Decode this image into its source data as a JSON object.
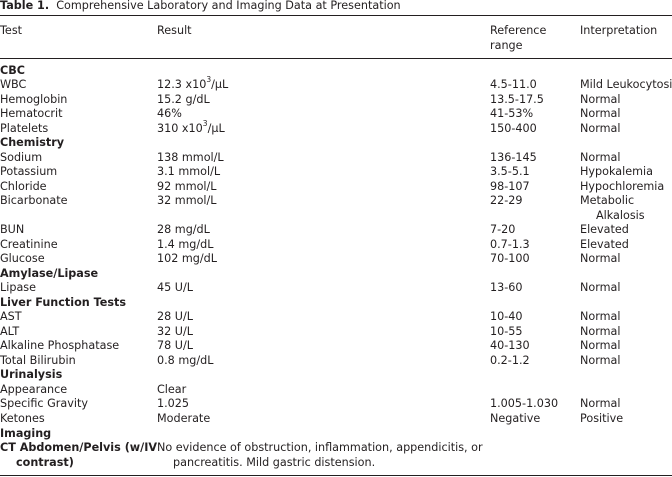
{
  "caption": {
    "label": "Table 1.",
    "text": "Comprehensive Laboratory and Imaging Data at Presentation"
  },
  "headers": {
    "test": "Test",
    "result": "Result",
    "reference_line1": "Reference",
    "reference_line2": "range",
    "interpretation": "Interpretation"
  },
  "rows": [
    {
      "section": "CBC"
    },
    {
      "test": "WBC",
      "result_pre": "12.3 x10",
      "result_sup": "3",
      "result_post": "/μL",
      "reference": "4.5-11.0",
      "interpretation": "Mild Leukocytosis"
    },
    {
      "test": "Hemoglobin",
      "result": "15.2 g/dL",
      "reference": "13.5-17.5",
      "interpretation": "Normal"
    },
    {
      "test": "Hematocrit",
      "result": "46%",
      "reference": "41-53%",
      "interpretation": "Normal"
    },
    {
      "test": "Platelets",
      "result_pre": "310 x10",
      "result_sup": "3",
      "result_post": "/μL",
      "reference": "150-400",
      "interpretation": "Normal"
    },
    {
      "section": "Chemistry"
    },
    {
      "test": "Sodium",
      "result": "138 mmol/L",
      "reference": "136-145",
      "interpretation": "Normal"
    },
    {
      "test": "Potassium",
      "result": "3.1 mmol/L",
      "reference": "3.5-5.1",
      "interpretation": "Hypokalemia"
    },
    {
      "test": "Chloride",
      "result": "92 mmol/L",
      "reference": "98-107",
      "interpretation": "Hypochloremia"
    },
    {
      "test": "Bicarbonate",
      "result": "32 mmol/L",
      "reference": "22-29",
      "interpretation": "Metabolic",
      "interpretation_line2": "Alkalosis"
    },
    {
      "test": "BUN",
      "result": "28 mg/dL",
      "reference": "7-20",
      "interpretation": "Elevated"
    },
    {
      "test": "Creatinine",
      "result": "1.4 mg/dL",
      "reference": "0.7-1.3",
      "interpretation": "Elevated"
    },
    {
      "test": "Glucose",
      "result": "102 mg/dL",
      "reference": "70-100",
      "interpretation": "Normal"
    },
    {
      "section": "Amylase/Lipase"
    },
    {
      "test": "Lipase",
      "result": "45 U/L",
      "reference": "13-60",
      "interpretation": "Normal"
    },
    {
      "section": "Liver Function Tests"
    },
    {
      "test": "AST",
      "result": "28 U/L",
      "reference": "10-40",
      "interpretation": "Normal"
    },
    {
      "test": "ALT",
      "result": "32 U/L",
      "reference": "10-55",
      "interpretation": "Normal"
    },
    {
      "test": "Alkaline Phosphatase",
      "result": "78 U/L",
      "reference": "40-130",
      "interpretation": "Normal"
    },
    {
      "test": "Total Bilirubin",
      "result": "0.8 mg/dL",
      "reference": "0.2-1.2",
      "interpretation": "Normal"
    },
    {
      "section": "Urinalysis"
    },
    {
      "test": "Appearance",
      "result": "Clear",
      "reference": "",
      "interpretation": ""
    },
    {
      "test": "Specific Gravity",
      "result": "1.025",
      "reference": "1.005-1.030",
      "interpretation": "Normal"
    },
    {
      "test": "Ketones",
      "result": "Moderate",
      "reference": "Negative",
      "interpretation": "Positive"
    },
    {
      "section": "Imaging"
    },
    {
      "test_bold": "CT Abdomen/Pelvis (w/IV",
      "test_bold_line2": "contrast)",
      "result": "No evidence of obstruction, inflammation, appendicitis, or",
      "result_line2": "pancreatitis. Mild gastric distension."
    }
  ]
}
